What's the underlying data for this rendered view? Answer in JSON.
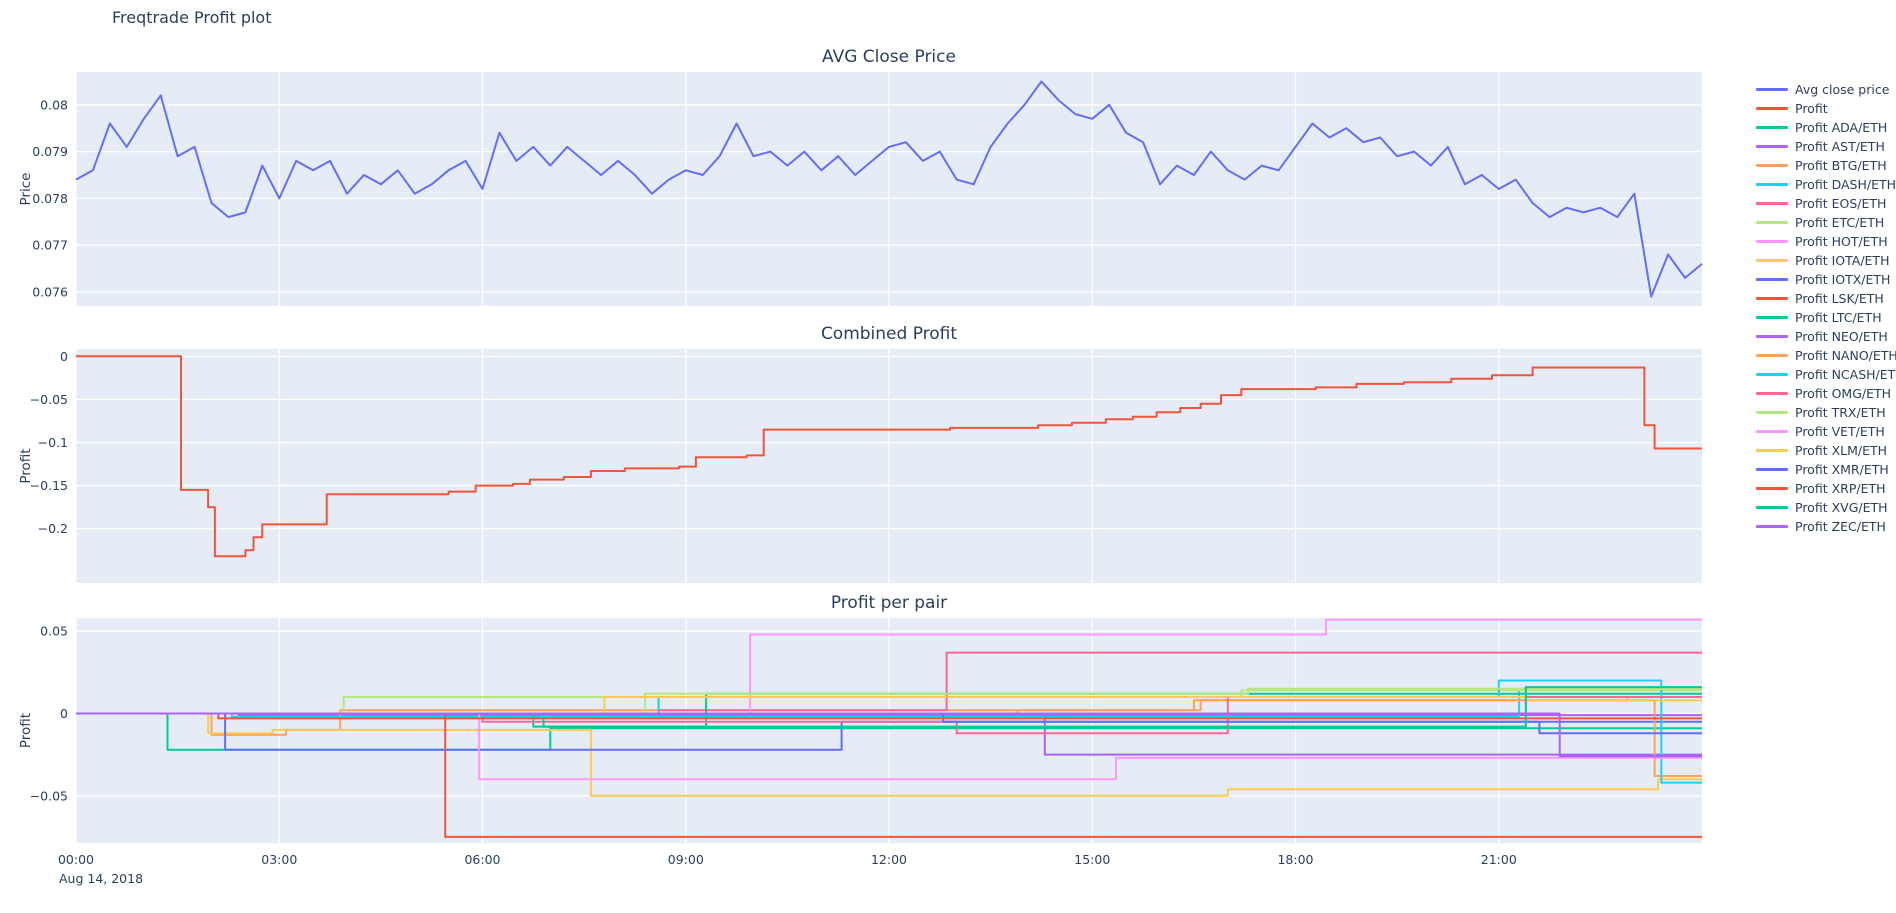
{
  "title": "Freqtrade Profit plot",
  "colors": {
    "paper_bg": "#ffffff",
    "plot_bg": "#e5ecf6",
    "grid": "#ffffff",
    "text": "#2a3f5f"
  },
  "x_axis": {
    "range": [
      0,
      24
    ],
    "ticks": [
      {
        "v": 0,
        "label": "00:00"
      },
      {
        "v": 3,
        "label": "03:00"
      },
      {
        "v": 6,
        "label": "06:00"
      },
      {
        "v": 9,
        "label": "09:00"
      },
      {
        "v": 12,
        "label": "12:00"
      },
      {
        "v": 15,
        "label": "15:00"
      },
      {
        "v": 18,
        "label": "18:00"
      },
      {
        "v": 21,
        "label": "21:00"
      }
    ],
    "date_label": "Aug 14, 2018"
  },
  "legend": {
    "position": "right",
    "items": [
      {
        "label": "Avg close price",
        "color": "#636efa"
      },
      {
        "label": "Profit",
        "color": "#EF553B"
      },
      {
        "label": "Profit ADA/ETH",
        "color": "#00cc96"
      },
      {
        "label": "Profit AST/ETH",
        "color": "#ab63fa"
      },
      {
        "label": "Profit BTG/ETH",
        "color": "#FFA15A"
      },
      {
        "label": "Profit DASH/ETH",
        "color": "#19d3f3"
      },
      {
        "label": "Profit EOS/ETH",
        "color": "#FF6692"
      },
      {
        "label": "Profit ETC/ETH",
        "color": "#B6E880"
      },
      {
        "label": "Profit HOT/ETH",
        "color": "#FF97FF"
      },
      {
        "label": "Profit IOTA/ETH",
        "color": "#FECB52"
      },
      {
        "label": "Profit IOTX/ETH",
        "color": "#636efa"
      },
      {
        "label": "Profit LSK/ETH",
        "color": "#EF553B"
      },
      {
        "label": "Profit LTC/ETH",
        "color": "#00cc96"
      },
      {
        "label": "Profit NEO/ETH",
        "color": "#ab63fa"
      },
      {
        "label": "Profit NANO/ETH",
        "color": "#FFA15A"
      },
      {
        "label": "Profit NCASH/ETH",
        "color": "#19d3f3"
      },
      {
        "label": "Profit OMG/ETH",
        "color": "#FF6692"
      },
      {
        "label": "Profit TRX/ETH",
        "color": "#B6E880"
      },
      {
        "label": "Profit VET/ETH",
        "color": "#FF97FF"
      },
      {
        "label": "Profit XLM/ETH",
        "color": "#FECB52"
      },
      {
        "label": "Profit XMR/ETH",
        "color": "#636efa"
      },
      {
        "label": "Profit XRP/ETH",
        "color": "#EF553B"
      },
      {
        "label": "Profit XVG/ETH",
        "color": "#00cc96"
      },
      {
        "label": "Profit ZEC/ETH",
        "color": "#ab63fa"
      }
    ]
  },
  "chart_data": [
    {
      "type": "line",
      "title": "AVG Close Price",
      "ylabel": "Price",
      "ylim": [
        0.0757,
        0.0807
      ],
      "yticks": [
        {
          "v": 0.076,
          "label": "0.076"
        },
        {
          "v": 0.077,
          "label": "0.077"
        },
        {
          "v": 0.078,
          "label": "0.078"
        },
        {
          "v": 0.079,
          "label": "0.079"
        },
        {
          "v": 0.08,
          "label": "0.08"
        }
      ],
      "series": [
        {
          "name": "Avg close price",
          "color": "#636efa",
          "mode": "linear",
          "x0": 0,
          "dx": 0.25,
          "y": [
            0.0784,
            0.0786,
            0.0796,
            0.0791,
            0.0797,
            0.0802,
            0.0789,
            0.0791,
            0.0779,
            0.0776,
            0.0777,
            0.0787,
            0.078,
            0.0788,
            0.0786,
            0.0788,
            0.0781,
            0.0785,
            0.0783,
            0.0786,
            0.0781,
            0.0783,
            0.0786,
            0.0788,
            0.0782,
            0.0794,
            0.0788,
            0.0791,
            0.0787,
            0.0791,
            0.0788,
            0.0785,
            0.0788,
            0.0785,
            0.0781,
            0.0784,
            0.0786,
            0.0785,
            0.0789,
            0.0796,
            0.0789,
            0.079,
            0.0787,
            0.079,
            0.0786,
            0.0789,
            0.0785,
            0.0788,
            0.0791,
            0.0792,
            0.0788,
            0.079,
            0.0784,
            0.0783,
            0.0791,
            0.0796,
            0.08,
            0.0805,
            0.0801,
            0.0798,
            0.0797,
            0.08,
            0.0794,
            0.0792,
            0.0783,
            0.0787,
            0.0785,
            0.079,
            0.0786,
            0.0784,
            0.0787,
            0.0786,
            0.0791,
            0.0796,
            0.0793,
            0.0795,
            0.0792,
            0.0793,
            0.0789,
            0.079,
            0.0787,
            0.0791,
            0.0783,
            0.0785,
            0.0782,
            0.0784,
            0.0779,
            0.0776,
            0.0778,
            0.0777,
            0.0778,
            0.0776,
            0.0781,
            0.0759,
            0.0768,
            0.0763,
            0.0766
          ]
        }
      ]
    },
    {
      "type": "line",
      "title": "Combined Profit",
      "ylabel": "Profit",
      "ylim": [
        -0.263,
        0.0085
      ],
      "yticks": [
        {
          "v": 0,
          "label": "0"
        },
        {
          "v": -0.05,
          "label": "−0.05"
        },
        {
          "v": -0.1,
          "label": "−0.1"
        },
        {
          "v": -0.15,
          "label": "−0.15"
        },
        {
          "v": -0.2,
          "label": "−0.2"
        }
      ],
      "series": [
        {
          "name": "Profit",
          "color": "#EF553B",
          "mode": "step",
          "points": [
            [
              0,
              0
            ],
            [
              1.55,
              -0.155
            ],
            [
              1.95,
              -0.175
            ],
            [
              2.05,
              -0.232
            ],
            [
              2.5,
              -0.225
            ],
            [
              2.62,
              -0.21
            ],
            [
              2.75,
              -0.195
            ],
            [
              3.7,
              -0.16
            ],
            [
              5.5,
              -0.157
            ],
            [
              5.9,
              -0.15
            ],
            [
              6.45,
              -0.148
            ],
            [
              6.7,
              -0.143
            ],
            [
              7.2,
              -0.14
            ],
            [
              7.6,
              -0.133
            ],
            [
              8.1,
              -0.13
            ],
            [
              8.9,
              -0.128
            ],
            [
              9.15,
              -0.117
            ],
            [
              9.9,
              -0.115
            ],
            [
              10.15,
              -0.085
            ],
            [
              12.9,
              -0.083
            ],
            [
              14.2,
              -0.08
            ],
            [
              14.7,
              -0.077
            ],
            [
              15.2,
              -0.073
            ],
            [
              15.6,
              -0.07
            ],
            [
              15.95,
              -0.065
            ],
            [
              16.3,
              -0.06
            ],
            [
              16.6,
              -0.055
            ],
            [
              16.9,
              -0.045
            ],
            [
              17.2,
              -0.038
            ],
            [
              18.3,
              -0.036
            ],
            [
              18.9,
              -0.032
            ],
            [
              19.6,
              -0.03
            ],
            [
              20.3,
              -0.026
            ],
            [
              20.9,
              -0.022
            ],
            [
              21.5,
              -0.013
            ],
            [
              23.15,
              -0.08
            ],
            [
              23.3,
              -0.107
            ],
            [
              24,
              -0.107
            ]
          ]
        }
      ]
    },
    {
      "type": "line",
      "title": "Profit per pair",
      "ylabel": "Profit",
      "ylim": [
        -0.0787,
        0.058
      ],
      "yticks": [
        {
          "v": 0.05,
          "label": "0.05"
        },
        {
          "v": 0,
          "label": "0"
        },
        {
          "v": -0.05,
          "label": "−0.05"
        }
      ],
      "series": [
        {
          "name": "Profit ADA/ETH",
          "color": "#00cc96",
          "mode": "step",
          "points": [
            [
              0,
              0
            ],
            [
              1.35,
              -0.022
            ],
            [
              7.0,
              -0.009
            ],
            [
              24,
              -0.009
            ]
          ]
        },
        {
          "name": "Profit AST/ETH",
          "color": "#ab63fa",
          "mode": "step",
          "points": [
            [
              0,
              0
            ],
            [
              2.4,
              -0.001
            ],
            [
              24,
              -0.001
            ]
          ]
        },
        {
          "name": "Profit BTG/ETH",
          "color": "#FFA15A",
          "mode": "step",
          "points": [
            [
              0,
              0
            ],
            [
              2.0,
              -0.013
            ],
            [
              3.1,
              -0.01
            ],
            [
              3.9,
              0.002
            ],
            [
              16.6,
              0.008
            ],
            [
              22.9,
              0.01
            ],
            [
              24,
              0.01
            ]
          ]
        },
        {
          "name": "Profit DASH/ETH",
          "color": "#19d3f3",
          "mode": "step",
          "points": [
            [
              0,
              0
            ],
            [
              2.3,
              -0.002
            ],
            [
              21.3,
              0.015
            ],
            [
              24,
              0.015
            ]
          ]
        },
        {
          "name": "Profit EOS/ETH",
          "color": "#FF6692",
          "mode": "step",
          "points": [
            [
              0,
              0
            ],
            [
              8.6,
              0.002
            ],
            [
              12.85,
              0.037
            ],
            [
              24,
              0.037
            ]
          ]
        },
        {
          "name": "Profit ETC/ETH",
          "color": "#B6E880",
          "mode": "step",
          "points": [
            [
              0,
              0
            ],
            [
              3.95,
              0.01
            ],
            [
              17.2,
              0.014
            ],
            [
              24,
              0.014
            ]
          ]
        },
        {
          "name": "Profit HOT/ETH",
          "color": "#FF97FF",
          "mode": "step",
          "points": [
            [
              0,
              0
            ],
            [
              9.95,
              0.048
            ],
            [
              18.45,
              0.057
            ],
            [
              24,
              0.057
            ]
          ]
        },
        {
          "name": "Profit IOTA/ETH",
          "color": "#FECB52",
          "mode": "step",
          "points": [
            [
              0,
              0
            ],
            [
              1.95,
              -0.012
            ],
            [
              2.9,
              -0.01
            ],
            [
              7.6,
              -0.05
            ],
            [
              17.0,
              -0.046
            ],
            [
              23.35,
              -0.04
            ],
            [
              24,
              -0.04
            ]
          ]
        },
        {
          "name": "Profit IOTX/ETH",
          "color": "#636efa",
          "mode": "step",
          "points": [
            [
              0,
              0
            ],
            [
              2.2,
              -0.022
            ],
            [
              11.3,
              -0.005
            ],
            [
              24,
              -0.005
            ]
          ]
        },
        {
          "name": "Profit LSK/ETH",
          "color": "#EF553B",
          "mode": "step",
          "points": [
            [
              0,
              0
            ],
            [
              5.45,
              -0.075
            ],
            [
              24,
              -0.075
            ]
          ]
        },
        {
          "name": "Profit LTC/ETH",
          "color": "#00cc96",
          "mode": "step",
          "points": [
            [
              0,
              0
            ],
            [
              6.75,
              -0.008
            ],
            [
              9.3,
              0.012
            ],
            [
              24,
              0.012
            ]
          ]
        },
        {
          "name": "Profit NEO/ETH",
          "color": "#ab63fa",
          "mode": "step",
          "points": [
            [
              0,
              0
            ],
            [
              14.3,
              -0.025
            ],
            [
              24,
              -0.025
            ]
          ]
        },
        {
          "name": "Profit NANO/ETH",
          "color": "#FFA15A",
          "mode": "step",
          "points": [
            [
              0,
              0
            ],
            [
              13.9,
              0.002
            ],
            [
              16.5,
              0.008
            ],
            [
              23.3,
              -0.038
            ],
            [
              24,
              -0.038
            ]
          ]
        },
        {
          "name": "Profit NCASH/ETH",
          "color": "#19d3f3",
          "mode": "step",
          "points": [
            [
              0,
              0
            ],
            [
              8.6,
              0.01
            ],
            [
              21.0,
              0.02
            ],
            [
              23.4,
              -0.042
            ],
            [
              24,
              -0.042
            ]
          ]
        },
        {
          "name": "Profit OMG/ETH",
          "color": "#FF6692",
          "mode": "step",
          "points": [
            [
              0,
              0
            ],
            [
              6.0,
              -0.005
            ],
            [
              13.0,
              -0.012
            ],
            [
              17.0,
              0.01
            ],
            [
              24,
              0.01
            ]
          ]
        },
        {
          "name": "Profit TRX/ETH",
          "color": "#B6E880",
          "mode": "step",
          "points": [
            [
              0,
              0
            ],
            [
              8.4,
              0.012
            ],
            [
              17.3,
              0.015
            ],
            [
              24,
              0.015
            ]
          ]
        },
        {
          "name": "Profit VET/ETH",
          "color": "#FF97FF",
          "mode": "step",
          "points": [
            [
              0,
              0
            ],
            [
              5.95,
              -0.04
            ],
            [
              15.35,
              -0.027
            ],
            [
              24,
              -0.027
            ]
          ]
        },
        {
          "name": "Profit XLM/ETH",
          "color": "#FECB52",
          "mode": "step",
          "points": [
            [
              0,
              0
            ],
            [
              7.8,
              0.01
            ],
            [
              21.4,
              0.008
            ],
            [
              24,
              0.008
            ]
          ]
        },
        {
          "name": "Profit XMR/ETH",
          "color": "#636efa",
          "mode": "step",
          "points": [
            [
              0,
              0
            ],
            [
              12.8,
              -0.005
            ],
            [
              21.6,
              -0.012
            ],
            [
              24,
              -0.012
            ]
          ]
        },
        {
          "name": "Profit XRP/ETH",
          "color": "#EF553B",
          "mode": "step",
          "points": [
            [
              0,
              0
            ],
            [
              2.1,
              -0.003
            ],
            [
              24,
              -0.003
            ]
          ]
        },
        {
          "name": "Profit XVG/ETH",
          "color": "#00cc96",
          "mode": "step",
          "points": [
            [
              0,
              0
            ],
            [
              6.9,
              -0.008
            ],
            [
              21.4,
              0.016
            ],
            [
              24,
              0.016
            ]
          ]
        },
        {
          "name": "Profit ZEC/ETH",
          "color": "#ab63fa",
          "mode": "step",
          "points": [
            [
              0,
              0
            ],
            [
              21.9,
              -0.026
            ],
            [
              24,
              -0.026
            ]
          ]
        }
      ]
    }
  ]
}
